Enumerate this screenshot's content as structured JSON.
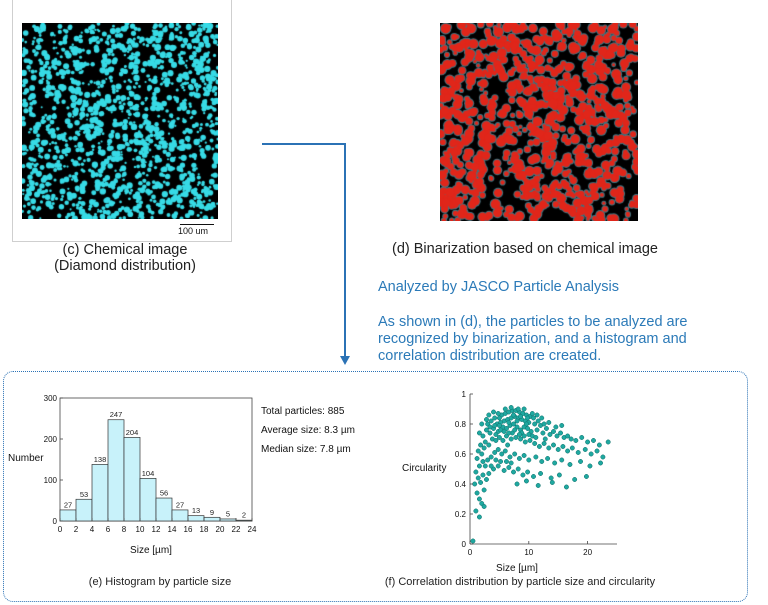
{
  "panel_c": {
    "caption_line1": "(c) Chemical image",
    "caption_line2": "(Diamond distribution)",
    "scale_bar_label": "100 um",
    "colors": {
      "background": "#000000",
      "particle": "#37dbe6"
    }
  },
  "panel_d": {
    "caption": "(d) Binarization based on chemical image",
    "colors": {
      "background": "#000000",
      "particle": "#e0261a",
      "outline": "#3a7c8a"
    }
  },
  "analysis_note": {
    "title": "Analyzed by JASCO Particle Analysis",
    "line1": "As shown in (d), the particles to be analyzed are",
    "line2": "recognized by binarization, and a histogram and",
    "line3": "correlation distribution are created.",
    "color": "#2b7ab8"
  },
  "stats": {
    "total": "Total particles: 885",
    "average": "Average size: 8.3 µm",
    "median": "Median size: 7.8 µm"
  },
  "captions": {
    "histogram": "(e) Histogram by particle size",
    "correlation": "(f) Correlation distribution by particle size and circularity"
  },
  "chart_data": [
    {
      "type": "bar",
      "xlabel": "Size [µm]",
      "ylabel": "Number",
      "categories": [
        "0-2",
        "2-4",
        "4-6",
        "6-8",
        "8-10",
        "10-12",
        "12-14",
        "14-16",
        "16-18",
        "18-20",
        "20-22",
        "22-24"
      ],
      "bin_edges": [
        0,
        2,
        4,
        6,
        8,
        10,
        12,
        14,
        16,
        18,
        20,
        22,
        24
      ],
      "values": [
        27,
        53,
        138,
        247,
        204,
        104,
        56,
        27,
        13,
        9,
        5,
        2
      ],
      "xlim": [
        0,
        24
      ],
      "ylim": [
        0,
        300
      ],
      "xticks": [
        0,
        2,
        4,
        6,
        8,
        10,
        12,
        14,
        16,
        18,
        20,
        22,
        24
      ],
      "yticks": [
        0,
        100,
        200,
        300
      ],
      "bar_color": "#c8f2fa"
    },
    {
      "type": "scatter",
      "xlabel": "Size [µm]",
      "ylabel": "Circularity",
      "xlim": [
        0,
        25
      ],
      "ylim": [
        0,
        1
      ],
      "xticks": [
        0,
        10,
        20
      ],
      "yticks": [
        0,
        0.2,
        0.4,
        0.6,
        0.8,
        1
      ],
      "ytick_labels": [
        "0",
        "0.2",
        "0.4",
        "0.6",
        "0.8",
        "1"
      ],
      "point_color": "#1fa8a0",
      "points": [
        [
          5.4,
          0.86
        ],
        [
          6.0,
          0.87
        ],
        [
          6.6,
          0.88
        ],
        [
          7.2,
          0.89
        ],
        [
          7.8,
          0.89
        ],
        [
          8.4,
          0.88
        ],
        [
          9.0,
          0.87
        ],
        [
          9.6,
          0.86
        ],
        [
          10.2,
          0.85
        ],
        [
          10.8,
          0.84
        ],
        [
          5.8,
          0.82
        ],
        [
          6.4,
          0.83
        ],
        [
          7.0,
          0.84
        ],
        [
          7.6,
          0.85
        ],
        [
          8.2,
          0.84
        ],
        [
          8.8,
          0.83
        ],
        [
          9.4,
          0.82
        ],
        [
          10.0,
          0.81
        ],
        [
          11.0,
          0.8
        ],
        [
          12.0,
          0.79
        ],
        [
          4.6,
          0.8
        ],
        [
          5.2,
          0.81
        ],
        [
          4.2,
          0.84
        ],
        [
          3.6,
          0.82
        ],
        [
          3.0,
          0.8
        ],
        [
          2.8,
          0.76
        ],
        [
          3.4,
          0.74
        ],
        [
          4.0,
          0.77
        ],
        [
          4.8,
          0.75
        ],
        [
          5.6,
          0.78
        ],
        [
          6.2,
          0.77
        ],
        [
          6.8,
          0.79
        ],
        [
          7.4,
          0.8
        ],
        [
          8.0,
          0.78
        ],
        [
          8.6,
          0.76
        ],
        [
          9.2,
          0.78
        ],
        [
          9.8,
          0.77
        ],
        [
          10.4,
          0.75
        ],
        [
          11.4,
          0.76
        ],
        [
          12.4,
          0.74
        ],
        [
          13.0,
          0.77
        ],
        [
          13.6,
          0.73
        ],
        [
          14.2,
          0.75
        ],
        [
          14.8,
          0.72
        ],
        [
          15.4,
          0.74
        ],
        [
          16.0,
          0.71
        ],
        [
          16.6,
          0.72
        ],
        [
          17.2,
          0.7
        ],
        [
          18.0,
          0.69
        ],
        [
          19.0,
          0.71
        ],
        [
          20.0,
          0.68
        ],
        [
          21.0,
          0.69
        ],
        [
          22.0,
          0.66
        ],
        [
          23.5,
          0.68
        ],
        [
          2.2,
          0.72
        ],
        [
          2.6,
          0.68
        ],
        [
          1.8,
          0.66
        ],
        [
          1.4,
          0.62
        ],
        [
          1.2,
          0.57
        ],
        [
          1.6,
          0.52
        ],
        [
          2.0,
          0.6
        ],
        [
          2.4,
          0.64
        ],
        [
          3.2,
          0.66
        ],
        [
          3.8,
          0.7
        ],
        [
          4.4,
          0.69
        ],
        [
          5.0,
          0.71
        ],
        [
          5.6,
          0.69
        ],
        [
          6.2,
          0.72
        ],
        [
          7.0,
          0.7
        ],
        [
          7.8,
          0.71
        ],
        [
          8.6,
          0.7
        ],
        [
          9.4,
          0.68
        ],
        [
          10.2,
          0.69
        ],
        [
          11.0,
          0.67
        ],
        [
          11.8,
          0.65
        ],
        [
          12.6,
          0.67
        ],
        [
          13.4,
          0.64
        ],
        [
          14.2,
          0.66
        ],
        [
          15.0,
          0.63
        ],
        [
          15.8,
          0.65
        ],
        [
          16.6,
          0.62
        ],
        [
          17.4,
          0.64
        ],
        [
          18.4,
          0.61
        ],
        [
          19.6,
          0.63
        ],
        [
          20.6,
          0.6
        ],
        [
          21.6,
          0.62
        ],
        [
          22.6,
          0.58
        ],
        [
          1.0,
          0.48
        ],
        [
          1.4,
          0.44
        ],
        [
          1.8,
          0.41
        ],
        [
          2.2,
          0.46
        ],
        [
          2.6,
          0.52
        ],
        [
          3.0,
          0.56
        ],
        [
          3.6,
          0.58
        ],
        [
          4.2,
          0.61
        ],
        [
          4.8,
          0.63
        ],
        [
          5.4,
          0.6
        ],
        [
          6.0,
          0.62
        ],
        [
          6.8,
          0.58
        ],
        [
          7.6,
          0.6
        ],
        [
          8.4,
          0.57
        ],
        [
          9.2,
          0.59
        ],
        [
          10.0,
          0.56
        ],
        [
          11.2,
          0.58
        ],
        [
          12.2,
          0.55
        ],
        [
          13.2,
          0.57
        ],
        [
          14.4,
          0.54
        ],
        [
          15.6,
          0.56
        ],
        [
          17.0,
          0.53
        ],
        [
          18.8,
          0.55
        ],
        [
          20.4,
          0.52
        ],
        [
          22.2,
          0.54
        ],
        [
          1.2,
          0.34
        ],
        [
          1.6,
          0.3
        ],
        [
          2.0,
          0.27
        ],
        [
          2.4,
          0.36
        ],
        [
          0.8,
          0.4
        ],
        [
          1.0,
          0.22
        ],
        [
          1.6,
          0.18
        ],
        [
          2.4,
          0.25
        ],
        [
          3.2,
          0.47
        ],
        [
          4.0,
          0.5
        ],
        [
          4.8,
          0.52
        ],
        [
          5.8,
          0.49
        ],
        [
          6.6,
          0.51
        ],
        [
          7.4,
          0.48
        ],
        [
          8.2,
          0.5
        ],
        [
          9.0,
          0.46
        ],
        [
          9.8,
          0.48
        ],
        [
          10.8,
          0.45
        ],
        [
          12.0,
          0.47
        ],
        [
          13.8,
          0.44
        ],
        [
          15.2,
          0.46
        ],
        [
          17.8,
          0.43
        ],
        [
          19.8,
          0.45
        ],
        [
          8.0,
          0.4
        ],
        [
          9.6,
          0.42
        ],
        [
          11.6,
          0.39
        ],
        [
          14.0,
          0.41
        ],
        [
          16.4,
          0.38
        ],
        [
          6.4,
          0.66
        ],
        [
          7.2,
          0.74
        ],
        [
          8.8,
          0.74
        ],
        [
          10.6,
          0.72
        ],
        [
          12.8,
          0.7
        ],
        [
          4.4,
          0.73
        ],
        [
          5.2,
          0.76
        ],
        [
          6.6,
          0.81
        ],
        [
          8.0,
          0.82
        ],
        [
          9.6,
          0.8
        ],
        [
          11.6,
          0.82
        ],
        [
          12.6,
          0.8
        ],
        [
          13.4,
          0.81
        ],
        [
          14.6,
          0.78
        ],
        [
          15.6,
          0.79
        ],
        [
          0.5,
          0.02
        ],
        [
          3.2,
          0.86
        ],
        [
          4.0,
          0.88
        ],
        [
          4.8,
          0.87
        ],
        [
          10.6,
          0.87
        ],
        [
          11.4,
          0.86
        ],
        [
          12.2,
          0.84
        ],
        [
          6.0,
          0.9
        ],
        [
          7.0,
          0.91
        ],
        [
          8.2,
          0.9
        ],
        [
          9.2,
          0.9
        ],
        [
          5.0,
          0.84
        ],
        [
          7.4,
          0.86
        ],
        [
          8.6,
          0.85
        ],
        [
          9.8,
          0.84
        ],
        [
          3.4,
          0.78
        ],
        [
          4.2,
          0.79
        ],
        [
          5.0,
          0.79
        ],
        [
          5.8,
          0.75
        ],
        [
          6.6,
          0.74
        ],
        [
          7.6,
          0.76
        ],
        [
          8.4,
          0.73
        ],
        [
          9.2,
          0.72
        ],
        [
          10.0,
          0.73
        ],
        [
          11.2,
          0.71
        ],
        [
          2.0,
          0.8
        ],
        [
          2.8,
          0.83
        ],
        [
          1.6,
          0.74
        ],
        [
          2.2,
          0.55
        ],
        [
          2.8,
          0.43
        ],
        [
          3.6,
          0.52
        ],
        [
          4.4,
          0.56
        ],
        [
          5.2,
          0.55
        ],
        [
          6.2,
          0.55
        ],
        [
          7.0,
          0.54
        ]
      ]
    }
  ]
}
